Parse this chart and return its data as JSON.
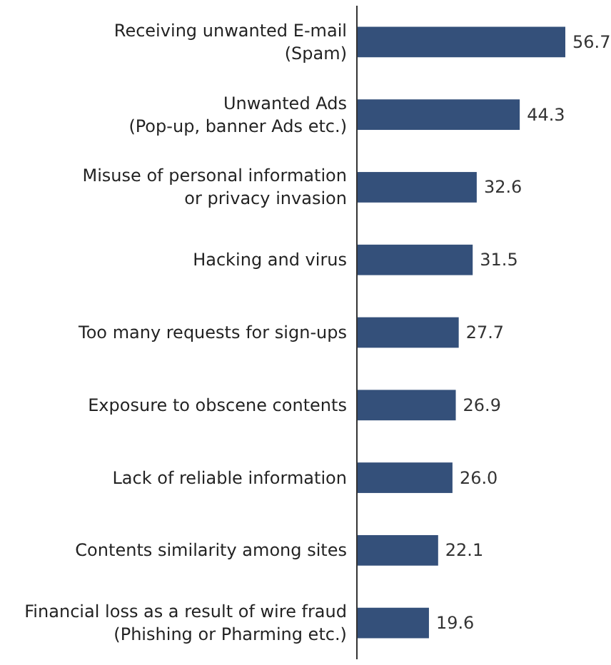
{
  "chart_data": {
    "type": "bar",
    "orientation": "horizontal",
    "categories": [
      "Receiving unwanted E-mail\n(Spam)",
      "Unwanted Ads\n(Pop-up, banner Ads etc.)",
      "Misuse of personal information\nor privacy invasion",
      "Hacking and virus",
      "Too many requests for sign-ups",
      "Exposure to obscene contents",
      "Lack of reliable information",
      "Contents similarity among sites",
      "Financial loss as a result of wire fraud\n(Phishing or Pharming etc.)"
    ],
    "values": [
      56.7,
      44.3,
      32.6,
      31.5,
      27.7,
      26.9,
      26.0,
      22.1,
      19.6
    ],
    "value_labels": [
      "56.7",
      "44.3",
      "32.6",
      "31.5",
      "27.7",
      "26.9",
      "26.0",
      "22.1",
      "19.6"
    ],
    "color": "#34507a"
  }
}
